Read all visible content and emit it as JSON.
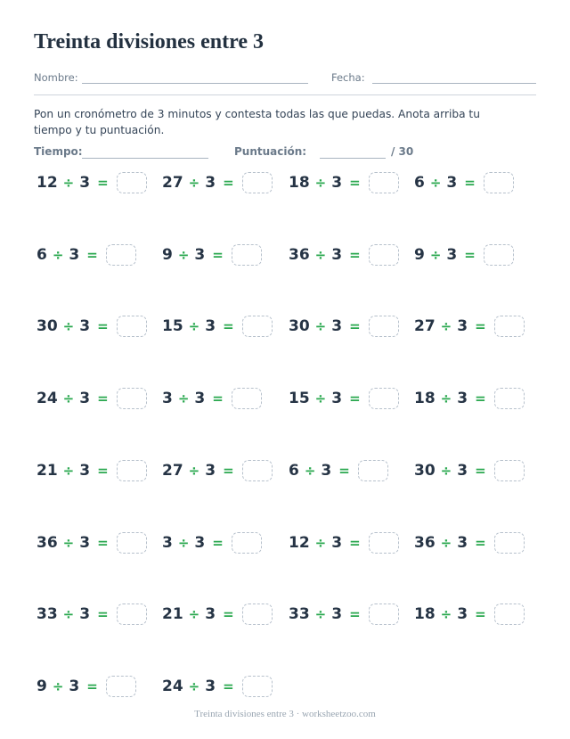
{
  "title": "Treinta divisiones entre 3",
  "header": {
    "name_label": "Nombre:",
    "date_label": "Fecha:"
  },
  "instructions": "Pon un cronómetro de 3 minutos y contesta todas las que puedas. Anota arriba tu tiempo y tu puntuación.",
  "meta": {
    "time_label": "Tiempo:",
    "score_label": "Puntuación:",
    "score_total": "/ 30"
  },
  "symbols": {
    "divide": "÷",
    "equals": "="
  },
  "problems": [
    {
      "dividend": "12",
      "divisor": "3"
    },
    {
      "dividend": "27",
      "divisor": "3"
    },
    {
      "dividend": "18",
      "divisor": "3"
    },
    {
      "dividend": "6",
      "divisor": "3"
    },
    {
      "dividend": "6",
      "divisor": "3"
    },
    {
      "dividend": "9",
      "divisor": "3"
    },
    {
      "dividend": "36",
      "divisor": "3"
    },
    {
      "dividend": "9",
      "divisor": "3"
    },
    {
      "dividend": "30",
      "divisor": "3"
    },
    {
      "dividend": "15",
      "divisor": "3"
    },
    {
      "dividend": "30",
      "divisor": "3"
    },
    {
      "dividend": "27",
      "divisor": "3"
    },
    {
      "dividend": "24",
      "divisor": "3"
    },
    {
      "dividend": "3",
      "divisor": "3"
    },
    {
      "dividend": "15",
      "divisor": "3"
    },
    {
      "dividend": "18",
      "divisor": "3"
    },
    {
      "dividend": "21",
      "divisor": "3"
    },
    {
      "dividend": "27",
      "divisor": "3"
    },
    {
      "dividend": "6",
      "divisor": "3"
    },
    {
      "dividend": "30",
      "divisor": "3"
    },
    {
      "dividend": "36",
      "divisor": "3"
    },
    {
      "dividend": "3",
      "divisor": "3"
    },
    {
      "dividend": "12",
      "divisor": "3"
    },
    {
      "dividend": "36",
      "divisor": "3"
    },
    {
      "dividend": "33",
      "divisor": "3"
    },
    {
      "dividend": "21",
      "divisor": "3"
    },
    {
      "dividend": "33",
      "divisor": "3"
    },
    {
      "dividend": "18",
      "divisor": "3"
    },
    {
      "dividend": "9",
      "divisor": "3"
    },
    {
      "dividend": "24",
      "divisor": "3"
    }
  ],
  "footer": "Treinta divisiones entre 3 · worksheetzoo.com"
}
